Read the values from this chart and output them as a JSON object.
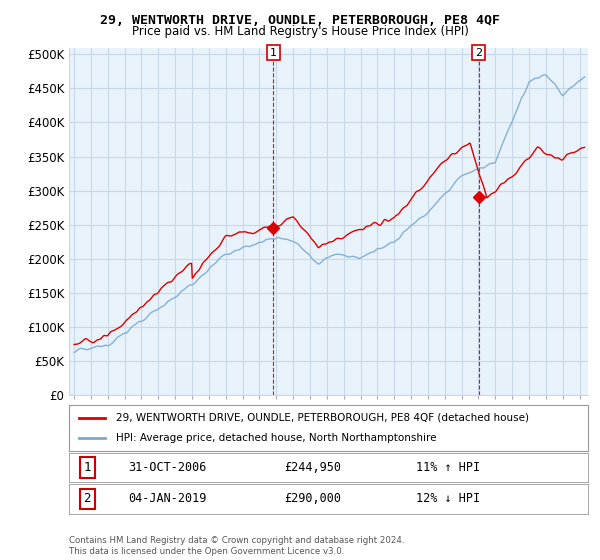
{
  "title": "29, WENTWORTH DRIVE, OUNDLE, PETERBOROUGH, PE8 4QF",
  "subtitle": "Price paid vs. HM Land Registry's House Price Index (HPI)",
  "sale1": {
    "price": 244950,
    "label": "1",
    "hpi_pct": "11% ↑ HPI",
    "date_str": "31-OCT-2006",
    "year": 2006.833
  },
  "sale2": {
    "price": 290000,
    "label": "2",
    "hpi_pct": "12% ↓ HPI",
    "date_str": "04-JAN-2019",
    "year": 2019.008
  },
  "legend_line1": "29, WENTWORTH DRIVE, OUNDLE, PETERBOROUGH, PE8 4QF (detached house)",
  "legend_line2": "HPI: Average price, detached house, North Northamptonshire",
  "footer": "Contains HM Land Registry data © Crown copyright and database right 2024.\nThis data is licensed under the Open Government Licence v3.0.",
  "line_color_red": "#dd0000",
  "line_color_blue": "#7aaad0",
  "vline_color": "#cc0000",
  "plot_bg": "#e8f2fb",
  "grid_color": "#c8d8e8",
  "background_color": "#ffffff",
  "yticks": [
    0,
    50000,
    100000,
    150000,
    200000,
    250000,
    300000,
    350000,
    400000,
    450000,
    500000
  ],
  "ytick_labels": [
    "£0",
    "£50K",
    "£100K",
    "£150K",
    "£200K",
    "£250K",
    "£300K",
    "£350K",
    "£400K",
    "£450K",
    "£500K"
  ]
}
